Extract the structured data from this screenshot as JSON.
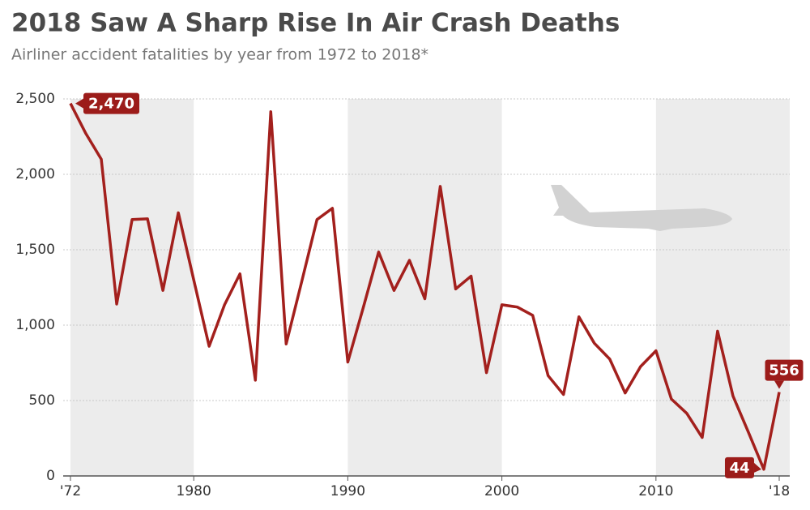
{
  "chart_data": {
    "type": "line",
    "title": "2018 Saw A Sharp Rise In Air Crash Deaths",
    "subtitle": "Airliner accident fatalities by year from 1972 to 2018*",
    "x": [
      1972,
      1973,
      1974,
      1975,
      1976,
      1977,
      1978,
      1979,
      1980,
      1981,
      1982,
      1983,
      1984,
      1985,
      1986,
      1987,
      1988,
      1989,
      1990,
      1991,
      1992,
      1993,
      1994,
      1995,
      1996,
      1997,
      1998,
      1999,
      2000,
      2001,
      2002,
      2003,
      2004,
      2005,
      2006,
      2007,
      2008,
      2009,
      2010,
      2011,
      2012,
      2013,
      2014,
      2015,
      2016,
      2017,
      2018
    ],
    "values": [
      2470,
      2270,
      2100,
      1140,
      1700,
      1705,
      1230,
      1745,
      1300,
      860,
      1135,
      1340,
      635,
      2415,
      875,
      1285,
      1700,
      1775,
      755,
      1115,
      1485,
      1230,
      1430,
      1175,
      1920,
      1240,
      1325,
      685,
      1135,
      1120,
      1065,
      665,
      540,
      1055,
      880,
      775,
      550,
      725,
      830,
      510,
      415,
      255,
      960,
      530,
      290,
      44,
      556
    ],
    "value_labels": [
      "2,470",
      null,
      null,
      null,
      null,
      null,
      null,
      null,
      null,
      null,
      null,
      null,
      null,
      null,
      null,
      null,
      null,
      null,
      null,
      null,
      null,
      null,
      null,
      null,
      null,
      null,
      null,
      null,
      null,
      null,
      null,
      null,
      null,
      null,
      null,
      null,
      null,
      null,
      null,
      null,
      null,
      null,
      null,
      null,
      null,
      "44",
      "556"
    ],
    "color": "#a3201d",
    "xlim": [
      1972,
      2018
    ],
    "xticks": [
      {
        "value": 1972,
        "label": "'72"
      },
      1980,
      1990,
      2000,
      2010,
      {
        "value": 2018,
        "label": "'18"
      }
    ],
    "ylim": [
      0,
      2500
    ],
    "yticks": [
      0,
      500,
      {
        "value": 1000,
        "label": "1,000"
      },
      {
        "value": 1500,
        "label": "1,500"
      },
      {
        "value": 2000,
        "label": "2,000"
      },
      {
        "value": 2500,
        "label": "2,500"
      }
    ],
    "grid": true
  }
}
